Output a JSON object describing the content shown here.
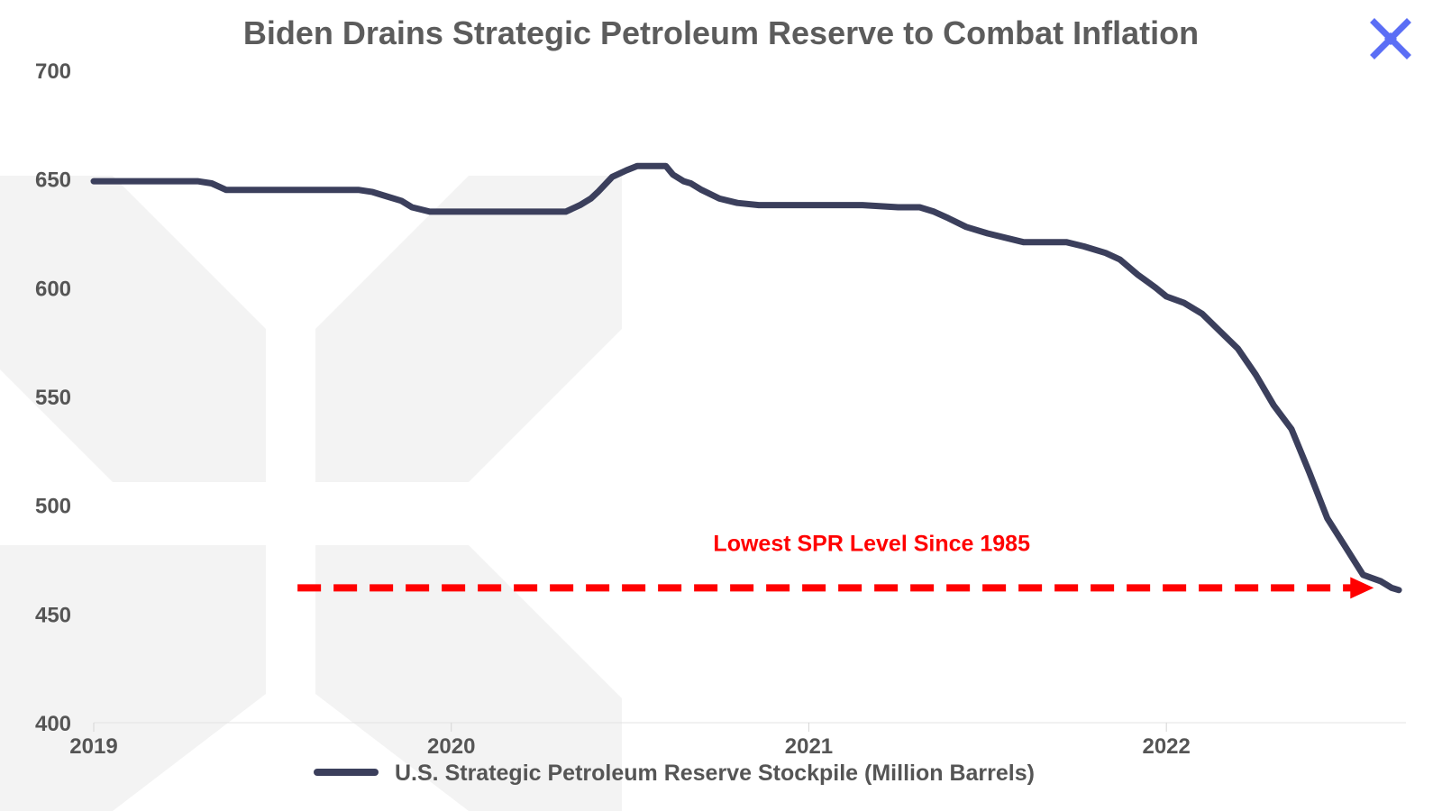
{
  "chart_data": {
    "type": "line",
    "title": "Biden Drains Strategic Petroleum Reserve to Combat Inflation",
    "ylim": [
      400,
      700
    ],
    "yticks": [
      "400",
      "450",
      "500",
      "550",
      "600",
      "650",
      "700"
    ],
    "xlim": [
      2019.0,
      2022.67
    ],
    "xticks": [
      "2019",
      "2020",
      "2021",
      "2022"
    ],
    "grid": false,
    "legend_position": "bottom-center",
    "series": [
      {
        "name": "U.S. Strategic Petroleum Reserve Stockpile (Million Barrels)",
        "color": "#3b3f5c",
        "x": [
          2019.0,
          2019.29,
          2019.33,
          2019.37,
          2019.45,
          2019.6,
          2019.74,
          2019.78,
          2019.82,
          2019.86,
          2019.89,
          2019.94,
          2020.0,
          2020.1,
          2020.2,
          2020.3,
          2020.32,
          2020.36,
          2020.39,
          2020.41,
          2020.45,
          2020.49,
          2020.52,
          2020.6,
          2020.62,
          2020.65,
          2020.67,
          2020.7,
          2020.75,
          2020.8,
          2020.86,
          2020.95,
          2021.05,
          2021.15,
          2021.25,
          2021.31,
          2021.35,
          2021.39,
          2021.44,
          2021.5,
          2021.6,
          2021.68,
          2021.72,
          2021.77,
          2021.83,
          2021.87,
          2021.92,
          2021.97,
          2022.0,
          2022.05,
          2022.1,
          2022.15,
          2022.2,
          2022.25,
          2022.3,
          2022.35,
          2022.4,
          2022.45,
          2022.5,
          2022.55,
          2022.6,
          2022.63,
          2022.65
        ],
        "y": [
          649,
          649,
          648,
          645,
          645,
          645,
          645,
          644,
          642,
          640,
          637,
          635,
          635,
          635,
          635,
          635,
          635,
          638,
          641,
          644,
          651,
          654,
          656,
          656,
          652,
          649,
          648,
          645,
          641,
          639,
          638,
          638,
          638,
          638,
          637,
          637,
          635,
          632,
          628,
          625,
          621,
          621,
          621,
          619,
          616,
          613,
          606,
          600,
          596,
          593,
          588,
          580,
          572,
          560,
          546,
          535,
          515,
          494,
          481,
          468,
          465,
          462,
          461
        ]
      }
    ],
    "annotations": [
      {
        "text": "Lowest SPR Level Since 1985",
        "color": "#ff0000",
        "arrow": "dashed",
        "arrow_from_x": 2019.57,
        "arrow_to_x": 2022.58,
        "y": 462
      }
    ]
  },
  "logo": {
    "name": "x-logo-icon",
    "color": "#5b6ef5"
  },
  "watermark": {
    "color": "#f3f3f3"
  }
}
